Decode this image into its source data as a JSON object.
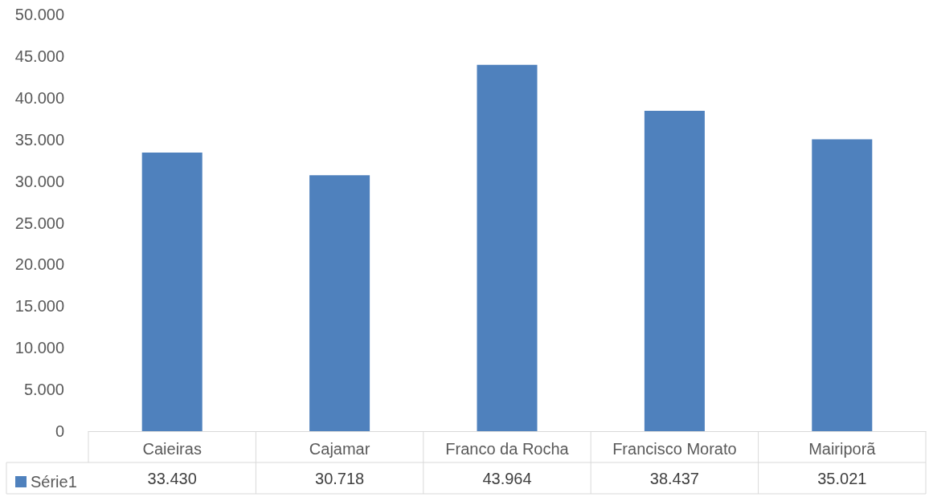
{
  "chart_data": {
    "type": "bar",
    "categories": [
      "Caieiras",
      "Cajamar",
      "Franco da Rocha",
      "Francisco Morato",
      "Mairiporã"
    ],
    "series": [
      {
        "name": "Série1",
        "color": "#4f81bd",
        "values": [
          33430,
          30718,
          43964,
          38437,
          35021
        ],
        "value_labels": [
          "33.430",
          "30.718",
          "43.964",
          "38.437",
          "35.021"
        ]
      }
    ],
    "ylim": [
      0,
      50000
    ],
    "yticks": [
      {
        "value": 0,
        "label": "0"
      },
      {
        "value": 5000,
        "label": "5.000"
      },
      {
        "value": 10000,
        "label": "10.000"
      },
      {
        "value": 15000,
        "label": "15.000"
      },
      {
        "value": 20000,
        "label": "20.000"
      },
      {
        "value": 25000,
        "label": "25.000"
      },
      {
        "value": 30000,
        "label": "30.000"
      },
      {
        "value": 35000,
        "label": "35.000"
      },
      {
        "value": 40000,
        "label": "40.000"
      },
      {
        "value": 45000,
        "label": "45.000"
      },
      {
        "value": 50000,
        "label": "50.000"
      }
    ],
    "legend": "bottom left"
  }
}
